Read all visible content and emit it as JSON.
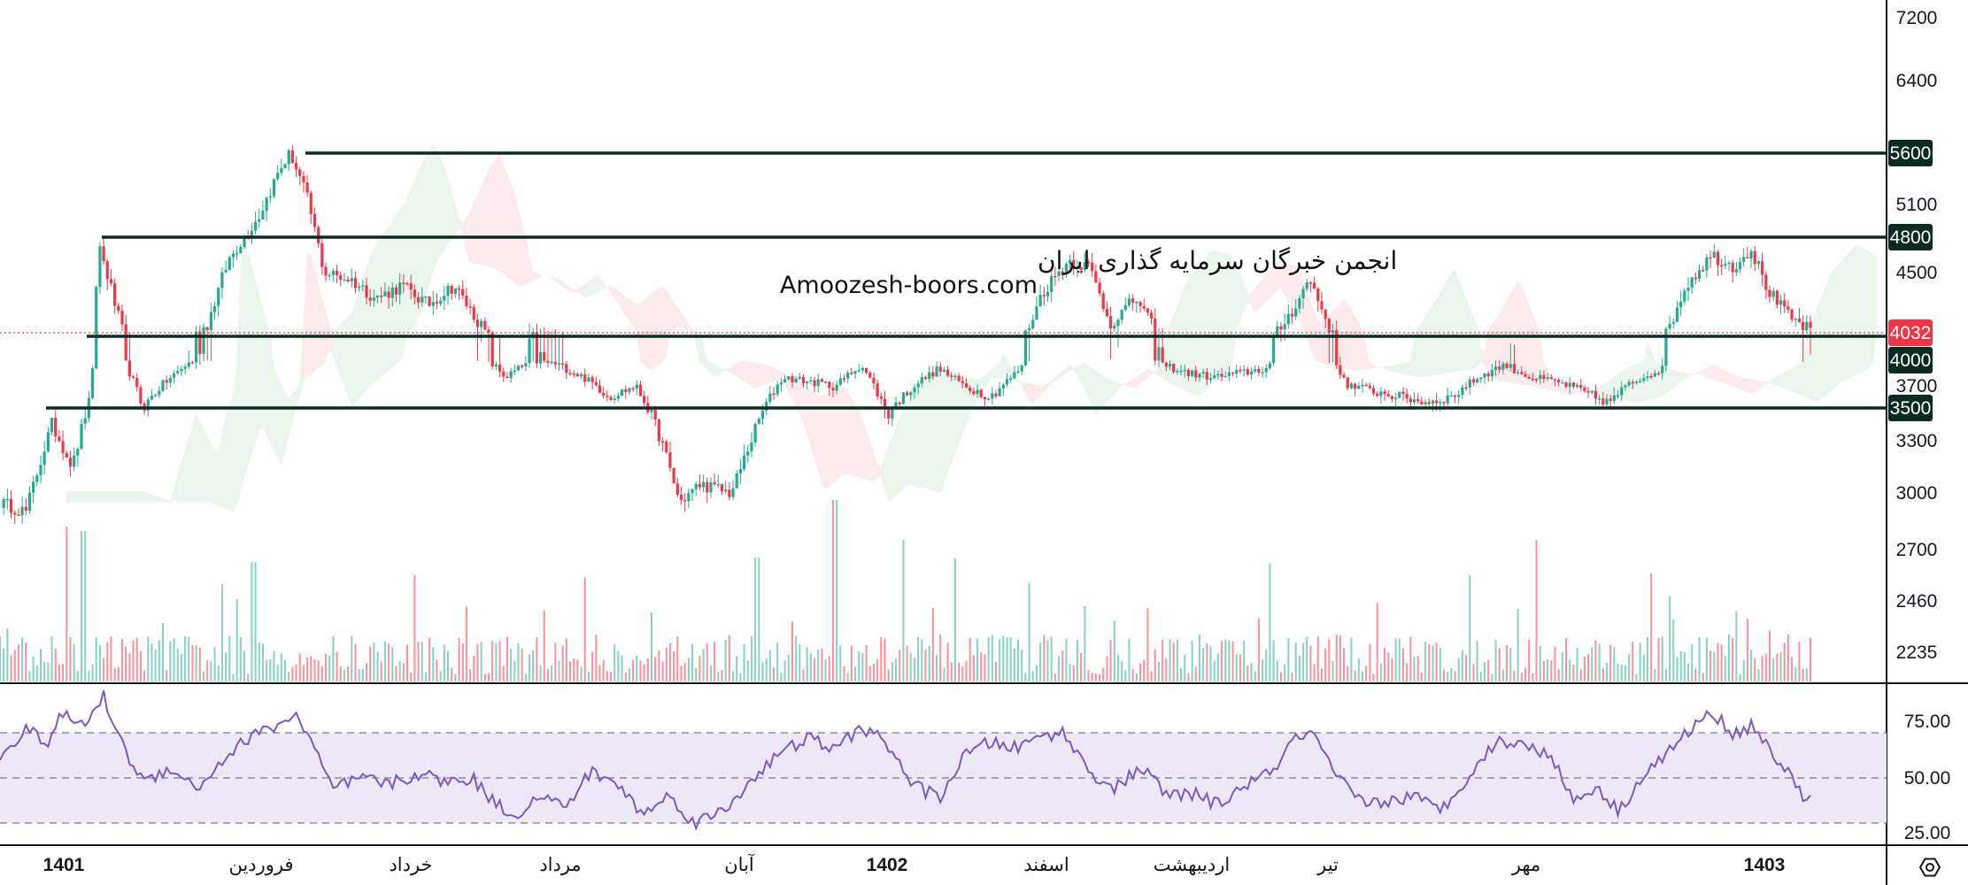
{
  "chart_data": [
    {
      "type": "candlestick",
      "title": "",
      "price_axis": {
        "ticks": [
          7200,
          6400,
          5600,
          5100,
          4800,
          4500,
          4032,
          4000,
          3700,
          3500,
          3300,
          3000,
          2700,
          2460,
          2235
        ]
      },
      "price_axis_labels": [
        "7200",
        "6400",
        "5100",
        "4500",
        "3700",
        "3300",
        "3000",
        "2700",
        "2460",
        "2235"
      ],
      "horizontal_levels": [
        {
          "price": 5600,
          "label": "5600"
        },
        {
          "price": 4800,
          "label": "4800"
        },
        {
          "price": 4000,
          "label": "4000"
        },
        {
          "price": 3500,
          "label": "3500"
        }
      ],
      "last_price": {
        "price": 4032,
        "label": "4032",
        "color": "#f23645"
      },
      "up_color": "#22ab94",
      "down_color": "#f23645",
      "ichimoku_cloud": {
        "bull_color": "#e8f5e9",
        "bear_color": "#fde8ea"
      },
      "volume": true,
      "time_axis_labels": [
        {
          "text": "1401",
          "bold": true
        },
        {
          "text": "فروردین",
          "bold": false
        },
        {
          "text": "خرداد",
          "bold": false
        },
        {
          "text": "مرداد",
          "bold": false
        },
        {
          "text": "آبان",
          "bold": false
        },
        {
          "text": "1402",
          "bold": true
        },
        {
          "text": "اسفند",
          "bold": false
        },
        {
          "text": "اردیبهشت",
          "bold": false
        },
        {
          "text": "تیر",
          "bold": false
        },
        {
          "text": "مهر",
          "bold": false
        },
        {
          "text": "1403",
          "bold": true
        }
      ],
      "price_path": [
        [
          0,
          2950
        ],
        [
          10,
          2900
        ],
        [
          20,
          3400
        ],
        [
          28,
          3150
        ],
        [
          35,
          3600
        ],
        [
          38,
          4750
        ],
        [
          45,
          4200
        ],
        [
          55,
          3500
        ],
        [
          62,
          3700
        ],
        [
          72,
          3950
        ],
        [
          80,
          4100
        ],
        [
          88,
          4600
        ],
        [
          100,
          5000
        ],
        [
          108,
          5450
        ],
        [
          112,
          5600
        ],
        [
          118,
          5200
        ],
        [
          125,
          4500
        ],
        [
          135,
          4450
        ],
        [
          145,
          4300
        ],
        [
          155,
          4400
        ],
        [
          165,
          4250
        ],
        [
          175,
          4400
        ],
        [
          185,
          4100
        ],
        [
          195,
          3800
        ],
        [
          205,
          4000
        ],
        [
          215,
          3950
        ],
        [
          225,
          3800
        ],
        [
          235,
          3600
        ],
        [
          245,
          3700
        ],
        [
          255,
          3300
        ],
        [
          262,
          2950
        ],
        [
          270,
          3050
        ],
        [
          282,
          3000
        ],
        [
          292,
          3400
        ],
        [
          302,
          3800
        ],
        [
          312,
          3750
        ],
        [
          322,
          3700
        ],
        [
          332,
          3950
        ],
        [
          342,
          3450
        ],
        [
          352,
          3700
        ],
        [
          362,
          3900
        ],
        [
          372,
          3700
        ],
        [
          382,
          3600
        ],
        [
          392,
          3850
        ],
        [
          402,
          4350
        ],
        [
          412,
          4600
        ],
        [
          420,
          4550
        ],
        [
          428,
          4100
        ],
        [
          438,
          4300
        ],
        [
          448,
          3950
        ],
        [
          458,
          3850
        ],
        [
          468,
          3800
        ],
        [
          478,
          3850
        ],
        [
          488,
          3900
        ],
        [
          498,
          4200
        ],
        [
          505,
          4450
        ],
        [
          512,
          4100
        ],
        [
          520,
          3700
        ],
        [
          530,
          3650
        ],
        [
          540,
          3600
        ],
        [
          550,
          3550
        ],
        [
          560,
          3600
        ],
        [
          570,
          3800
        ],
        [
          580,
          3950
        ],
        [
          590,
          3800
        ],
        [
          600,
          3750
        ],
        [
          610,
          3650
        ],
        [
          620,
          3550
        ],
        [
          630,
          3750
        ],
        [
          640,
          3900
        ],
        [
          650,
          4400
        ],
        [
          660,
          4650
        ],
        [
          668,
          4550
        ],
        [
          675,
          4700
        ],
        [
          682,
          4350
        ],
        [
          690,
          4150
        ],
        [
          698,
          4050
        ]
      ],
      "rsi": {
        "levels": [
          70,
          50,
          30
        ],
        "labels": [
          "75.00",
          "50.00",
          "25.00"
        ],
        "line_color": "#7e57c2",
        "band_color": "#ede7f6",
        "values": [
          [
            0,
            60
          ],
          [
            10,
            72
          ],
          [
            18,
            65
          ],
          [
            24,
            78
          ],
          [
            32,
            73
          ],
          [
            40,
            86
          ],
          [
            48,
            62
          ],
          [
            56,
            48
          ],
          [
            66,
            55
          ],
          [
            76,
            45
          ],
          [
            86,
            58
          ],
          [
            96,
            68
          ],
          [
            106,
            73
          ],
          [
            114,
            78
          ],
          [
            120,
            66
          ],
          [
            128,
            45
          ],
          [
            140,
            50
          ],
          [
            150,
            47
          ],
          [
            162,
            52
          ],
          [
            172,
            48
          ],
          [
            182,
            50
          ],
          [
            190,
            40
          ],
          [
            198,
            33
          ],
          [
            208,
            42
          ],
          [
            218,
            37
          ],
          [
            228,
            53
          ],
          [
            238,
            47
          ],
          [
            248,
            34
          ],
          [
            258,
            42
          ],
          [
            268,
            30
          ],
          [
            280,
            36
          ],
          [
            290,
            50
          ],
          [
            300,
            60
          ],
          [
            312,
            68
          ],
          [
            322,
            62
          ],
          [
            332,
            73
          ],
          [
            342,
            65
          ],
          [
            352,
            47
          ],
          [
            362,
            41
          ],
          [
            372,
            60
          ],
          [
            382,
            66
          ],
          [
            392,
            63
          ],
          [
            402,
            69
          ],
          [
            410,
            70
          ],
          [
            420,
            53
          ],
          [
            430,
            45
          ],
          [
            440,
            55
          ],
          [
            450,
            42
          ],
          [
            460,
            43
          ],
          [
            470,
            38
          ],
          [
            480,
            47
          ],
          [
            490,
            52
          ],
          [
            498,
            66
          ],
          [
            506,
            70
          ],
          [
            514,
            52
          ],
          [
            524,
            40
          ],
          [
            534,
            39
          ],
          [
            544,
            42
          ],
          [
            556,
            36
          ],
          [
            566,
            51
          ],
          [
            578,
            67
          ],
          [
            588,
            64
          ],
          [
            598,
            61
          ],
          [
            606,
            40
          ],
          [
            616,
            46
          ],
          [
            624,
            35
          ],
          [
            634,
            52
          ],
          [
            644,
            62
          ],
          [
            652,
            72
          ],
          [
            660,
            79
          ],
          [
            668,
            70
          ],
          [
            676,
            73
          ],
          [
            686,
            57
          ],
          [
            696,
            41
          ]
        ]
      }
    }
  ],
  "watermark": {
    "line1": "انجمن خبرگان سرمایه گذاری ایران",
    "line2": "Amoozesh-boors.com"
  },
  "settings_icon": "hexagon-gear-icon"
}
